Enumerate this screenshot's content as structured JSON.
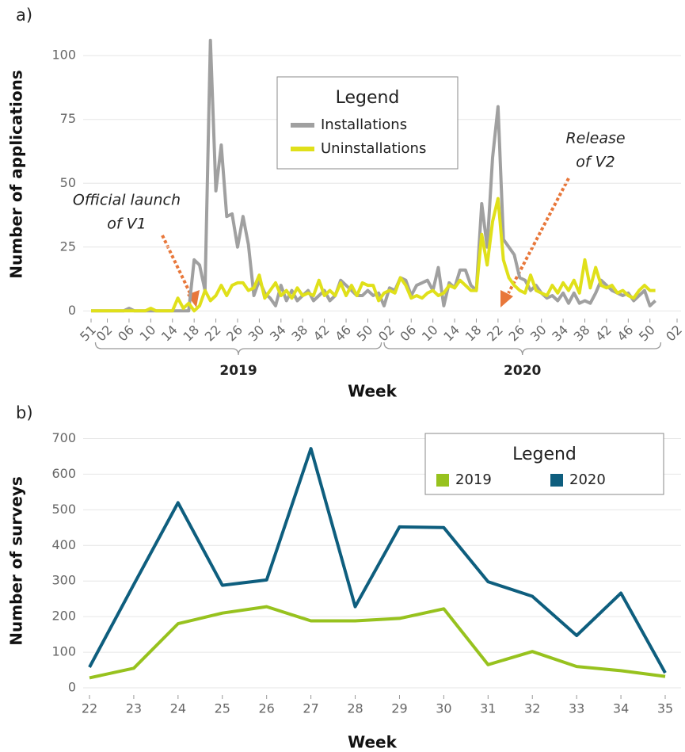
{
  "chart_data": [
    {
      "type": "line",
      "panel_label": "a)",
      "y_label": "Number of applications",
      "x_label": "Week",
      "legend_title": "Legend",
      "legend_position": "top-center",
      "grid": true,
      "ylim": [
        -3,
        110
      ],
      "yticks": [
        0,
        25,
        50,
        75,
        100
      ],
      "categories": [
        "51",
        null,
        null,
        "02",
        null,
        null,
        null,
        "06",
        null,
        null,
        null,
        "10",
        null,
        null,
        null,
        "14",
        null,
        null,
        null,
        "18",
        null,
        null,
        null,
        "22",
        null,
        null,
        null,
        "26",
        null,
        null,
        null,
        "30",
        null,
        null,
        null,
        "34",
        null,
        null,
        null,
        "38",
        null,
        null,
        null,
        "42",
        null,
        null,
        null,
        "46",
        null,
        null,
        null,
        "50",
        null,
        null,
        null,
        "02",
        null,
        null,
        null,
        "06",
        null,
        null,
        null,
        "10",
        null,
        null,
        null,
        "14",
        null,
        null,
        null,
        "18",
        null,
        null,
        null,
        "22",
        null,
        null,
        null,
        "26",
        null,
        null,
        null,
        "30",
        null,
        null,
        null,
        "34",
        null,
        null,
        null,
        "38",
        null,
        null,
        null,
        "42",
        null,
        null,
        null,
        "46",
        null,
        null,
        null,
        "50",
        null,
        null,
        null,
        null,
        "02"
      ],
      "x_groups": [
        {
          "label": "2019"
        },
        {
          "label": "2020"
        }
      ],
      "annotations": [
        {
          "lines": [
            "Official launch",
            "of V1"
          ]
        },
        {
          "lines": [
            "Release",
            "of V2"
          ]
        }
      ],
      "series": [
        {
          "name": "Installations",
          "color": "#a0a0a0",
          "values": [
            0,
            0,
            0,
            0,
            0,
            0,
            0,
            1,
            0,
            0,
            0,
            0,
            0,
            0,
            0,
            0,
            0,
            0,
            0,
            20,
            18,
            8,
            106,
            47,
            65,
            37,
            38,
            25,
            37,
            26,
            6,
            12,
            7,
            5,
            2,
            10,
            4,
            8,
            4,
            6,
            8,
            4,
            6,
            8,
            4,
            6,
            12,
            10,
            8,
            6,
            6,
            8,
            6,
            7,
            2,
            9,
            8,
            13,
            12,
            6,
            10,
            11,
            12,
            8,
            17,
            2,
            11,
            9,
            16,
            16,
            10,
            8,
            42,
            25,
            60,
            80,
            28,
            25,
            22,
            13,
            12,
            8,
            10,
            7,
            5,
            6,
            4,
            7,
            3,
            7,
            3,
            4,
            3,
            7,
            12,
            10,
            8,
            7,
            6,
            7,
            4,
            6,
            8,
            2,
            4,
            null,
            null,
            null,
            null
          ]
        },
        {
          "name": "Uninstallations",
          "color": "#e0e01a",
          "values": [
            0,
            0,
            0,
            0,
            0,
            0,
            0,
            0,
            0,
            0,
            0,
            1,
            0,
            0,
            0,
            0,
            5,
            1,
            3,
            0,
            2,
            8,
            4,
            6,
            10,
            6,
            10,
            11,
            11,
            8,
            9,
            14,
            5,
            8,
            11,
            6,
            8,
            5,
            9,
            6,
            7,
            6,
            12,
            6,
            8,
            6,
            11,
            6,
            10,
            6,
            11,
            10,
            10,
            4,
            7,
            8,
            7,
            13,
            10,
            5,
            6,
            5,
            7,
            8,
            6,
            7,
            10,
            9,
            12,
            10,
            8,
            8,
            30,
            18,
            35,
            44,
            20,
            13,
            10,
            8,
            7,
            14,
            8,
            7,
            6,
            10,
            7,
            11,
            8,
            12,
            7,
            20,
            9,
            17,
            10,
            9,
            10,
            7,
            8,
            6,
            5,
            8,
            10,
            8,
            8,
            null,
            null,
            null,
            null
          ]
        }
      ]
    },
    {
      "type": "line",
      "panel_label": "b)",
      "y_label": "Number of surveys",
      "x_label": "Week",
      "legend_title": "Legend",
      "legend_position": "top-right",
      "grid": true,
      "ylim": [
        -20,
        730
      ],
      "yticks": [
        0,
        100,
        200,
        300,
        400,
        500,
        600,
        700
      ],
      "categories": [
        "22",
        "23",
        "24",
        "25",
        "26",
        "27",
        "28",
        "29",
        "30",
        "31",
        "32",
        "33",
        "34",
        "35"
      ],
      "series": [
        {
          "name": "2019",
          "color": "#97c21e",
          "values": [
            28,
            55,
            180,
            210,
            228,
            188,
            188,
            195,
            222,
            65,
            102,
            60,
            48,
            32
          ]
        },
        {
          "name": "2020",
          "color": "#0e5e7e",
          "values": [
            58,
            290,
            520,
            288,
            303,
            672,
            228,
            452,
            450,
            298,
            257,
            147,
            266,
            42
          ]
        }
      ]
    }
  ]
}
